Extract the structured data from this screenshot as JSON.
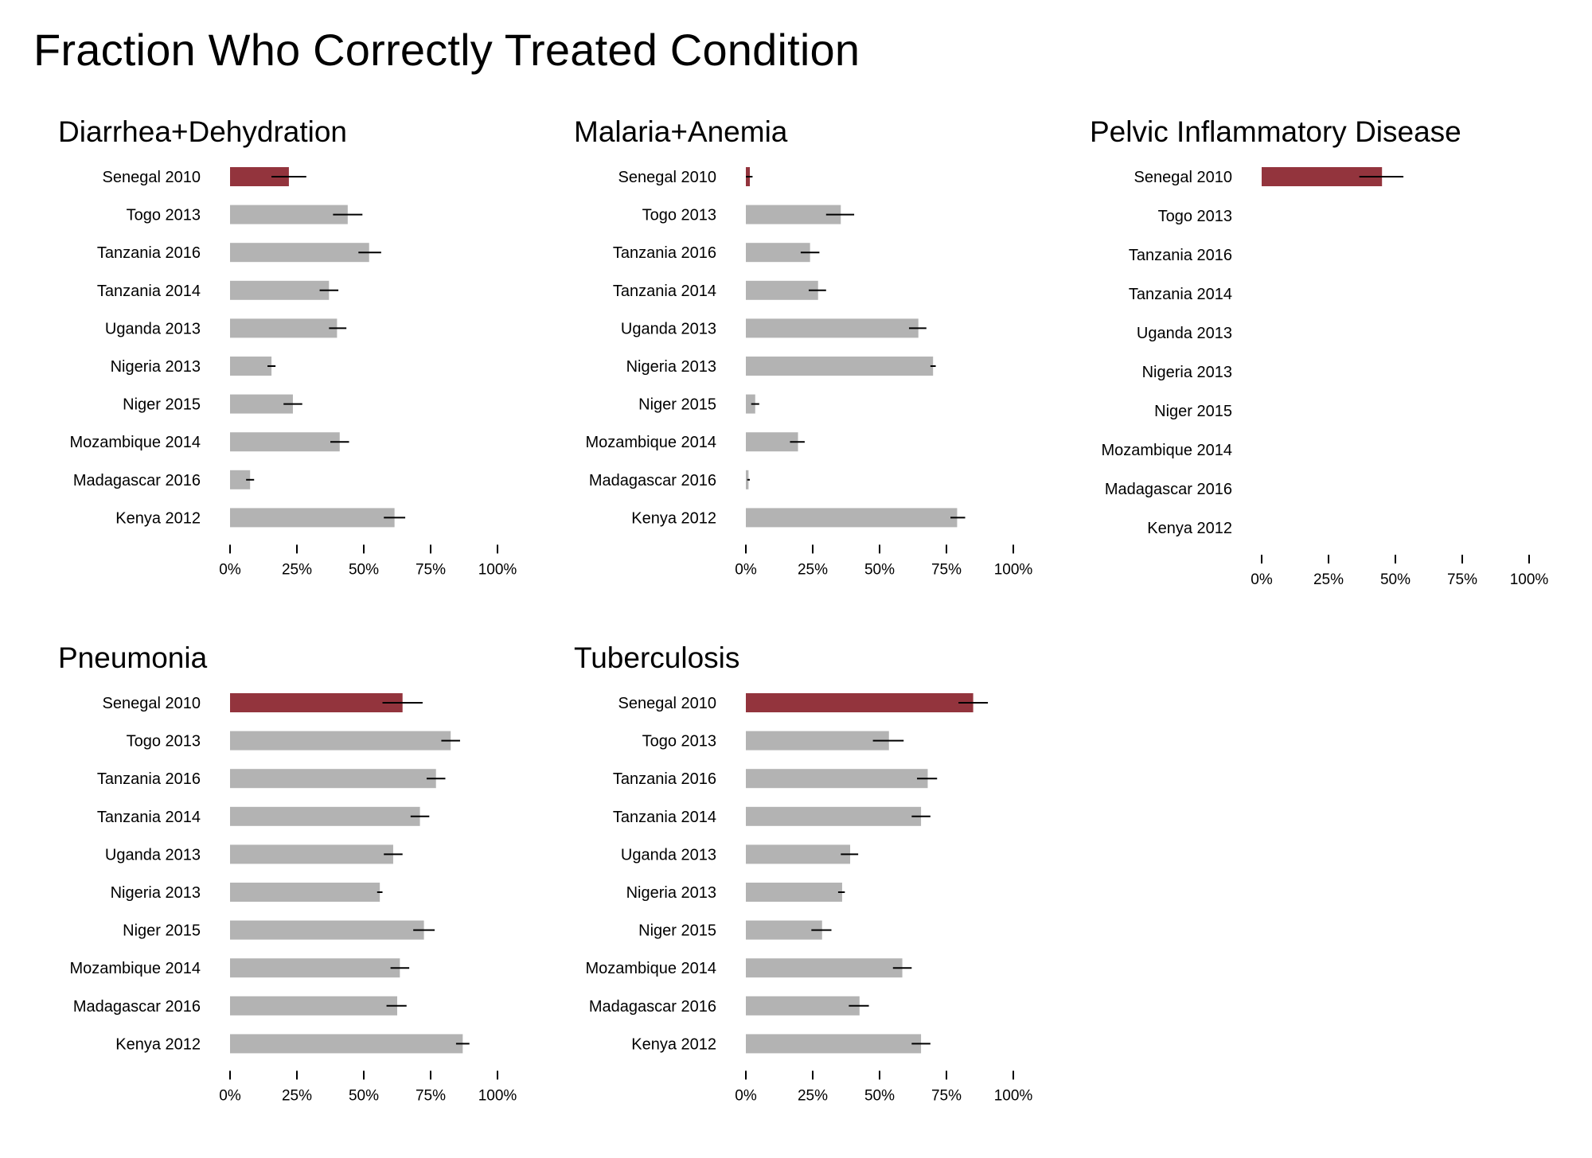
{
  "title": "Fraction Who Correctly Treated Condition",
  "colors": {
    "highlight": "#93343D",
    "bar": "#B3B3B3",
    "error": "#000000",
    "text": "#000000"
  },
  "chart_data": [
    {
      "type": "bar",
      "orientation": "horizontal",
      "title": "Diarrhea+Dehydration",
      "categories": [
        "Senegal 2010",
        "Togo 2013",
        "Tanzania 2016",
        "Tanzania 2014",
        "Uganda 2013",
        "Nigeria 2013",
        "Niger 2015",
        "Mozambique 2014",
        "Madagascar 2016",
        "Kenya 2012"
      ],
      "values": [
        0.22,
        0.44,
        0.52,
        0.37,
        0.4,
        0.155,
        0.235,
        0.41,
        0.075,
        0.615
      ],
      "error_low": [
        0.155,
        0.385,
        0.48,
        0.335,
        0.37,
        0.14,
        0.2,
        0.375,
        0.06,
        0.575
      ],
      "error_high": [
        0.285,
        0.495,
        0.565,
        0.405,
        0.435,
        0.17,
        0.27,
        0.445,
        0.09,
        0.655
      ],
      "highlight": "Senegal 2010",
      "xlim": [
        0,
        1
      ],
      "xticks": [
        "0%",
        "25%",
        "50%",
        "75%",
        "100%"
      ],
      "grid": false
    },
    {
      "type": "bar",
      "orientation": "horizontal",
      "title": "Malaria+Anemia",
      "categories": [
        "Senegal 2010",
        "Togo 2013",
        "Tanzania 2016",
        "Tanzania 2014",
        "Uganda 2013",
        "Nigeria 2013",
        "Niger 2015",
        "Mozambique 2014",
        "Madagascar 2016",
        "Kenya 2012"
      ],
      "values": [
        0.015,
        0.355,
        0.24,
        0.27,
        0.645,
        0.7,
        0.035,
        0.195,
        0.01,
        0.79
      ],
      "error_low": [
        0.0,
        0.3,
        0.205,
        0.235,
        0.61,
        0.69,
        0.02,
        0.165,
        0.005,
        0.765
      ],
      "error_high": [
        0.025,
        0.405,
        0.275,
        0.3,
        0.675,
        0.71,
        0.05,
        0.22,
        0.015,
        0.82
      ],
      "highlight": "Senegal 2010",
      "xlim": [
        0,
        1
      ],
      "xticks": [
        "0%",
        "25%",
        "50%",
        "75%",
        "100%"
      ],
      "grid": false
    },
    {
      "type": "bar",
      "orientation": "horizontal",
      "title": "Pelvic Inflammatory Disease",
      "categories": [
        "Senegal 2010",
        "Togo 2013",
        "Tanzania 2016",
        "Tanzania 2014",
        "Uganda 2013",
        "Nigeria 2013",
        "Niger 2015",
        "Mozambique 2014",
        "Madagascar 2016",
        "Kenya 2012"
      ],
      "values": [
        0.45,
        null,
        null,
        null,
        null,
        null,
        null,
        null,
        null,
        null
      ],
      "error_low": [
        0.365,
        null,
        null,
        null,
        null,
        null,
        null,
        null,
        null,
        null
      ],
      "error_high": [
        0.53,
        null,
        null,
        null,
        null,
        null,
        null,
        null,
        null,
        null
      ],
      "highlight": "Senegal 2010",
      "xlim": [
        0,
        1
      ],
      "xticks": [
        "0%",
        "25%",
        "50%",
        "75%",
        "100%"
      ],
      "grid": false
    },
    {
      "type": "bar",
      "orientation": "horizontal",
      "title": "Pneumonia",
      "categories": [
        "Senegal 2010",
        "Togo 2013",
        "Tanzania 2016",
        "Tanzania 2014",
        "Uganda 2013",
        "Nigeria 2013",
        "Niger 2015",
        "Mozambique 2014",
        "Madagascar 2016",
        "Kenya 2012"
      ],
      "values": [
        0.645,
        0.825,
        0.77,
        0.71,
        0.61,
        0.56,
        0.725,
        0.635,
        0.625,
        0.87
      ],
      "error_low": [
        0.57,
        0.79,
        0.735,
        0.675,
        0.575,
        0.55,
        0.685,
        0.6,
        0.585,
        0.845
      ],
      "error_high": [
        0.72,
        0.86,
        0.805,
        0.745,
        0.645,
        0.57,
        0.765,
        0.67,
        0.66,
        0.895
      ],
      "highlight": "Senegal 2010",
      "xlim": [
        0,
        1
      ],
      "xticks": [
        "0%",
        "25%",
        "50%",
        "75%",
        "100%"
      ],
      "grid": false
    },
    {
      "type": "bar",
      "orientation": "horizontal",
      "title": "Tuberculosis",
      "categories": [
        "Senegal 2010",
        "Togo 2013",
        "Tanzania 2016",
        "Tanzania 2014",
        "Uganda 2013",
        "Nigeria 2013",
        "Niger 2015",
        "Mozambique 2014",
        "Madagascar 2016",
        "Kenya 2012"
      ],
      "values": [
        0.85,
        0.535,
        0.68,
        0.655,
        0.39,
        0.36,
        0.285,
        0.585,
        0.425,
        0.655
      ],
      "error_low": [
        0.795,
        0.475,
        0.64,
        0.62,
        0.355,
        0.345,
        0.245,
        0.55,
        0.385,
        0.62
      ],
      "error_high": [
        0.905,
        0.59,
        0.715,
        0.69,
        0.42,
        0.37,
        0.32,
        0.62,
        0.46,
        0.69
      ],
      "highlight": "Senegal 2010",
      "xlim": [
        0,
        1
      ],
      "xticks": [
        "0%",
        "25%",
        "50%",
        "75%",
        "100%"
      ],
      "grid": false
    }
  ]
}
